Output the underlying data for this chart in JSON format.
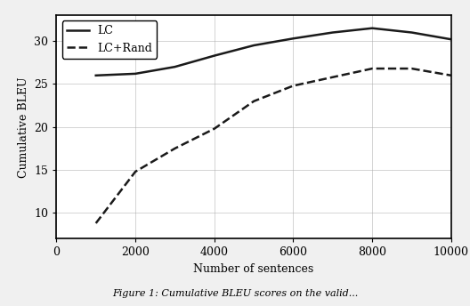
{
  "lc_x": [
    1000,
    2000,
    3000,
    4000,
    5000,
    6000,
    7000,
    8000,
    9000,
    10000
  ],
  "lc_y": [
    26.0,
    26.2,
    27.0,
    28.3,
    29.5,
    30.3,
    31.0,
    31.5,
    31.0,
    30.2
  ],
  "lc_rand_x": [
    1000,
    2000,
    3000,
    4000,
    5000,
    6000,
    7000,
    8000,
    9000,
    10000
  ],
  "lc_rand_y": [
    8.8,
    14.8,
    17.5,
    19.8,
    23.0,
    24.8,
    25.8,
    26.8,
    26.8,
    26.0
  ],
  "xlabel": "Number of sentences",
  "ylabel": "Cumulative BLEU",
  "lc_label": "LC",
  "lc_rand_label": "LC+Rand",
  "line_color": "#1a1a1a",
  "xlim": [
    0,
    10000
  ],
  "ylim": [
    7,
    33
  ],
  "xticks": [
    0,
    2000,
    4000,
    6000,
    8000,
    10000
  ],
  "yticks": [
    10,
    15,
    20,
    25,
    30
  ],
  "caption": "Figure 1: Cumulative BLEU scores on the valid...",
  "background_color": "#f0f0f0",
  "axes_background": "#ffffff"
}
